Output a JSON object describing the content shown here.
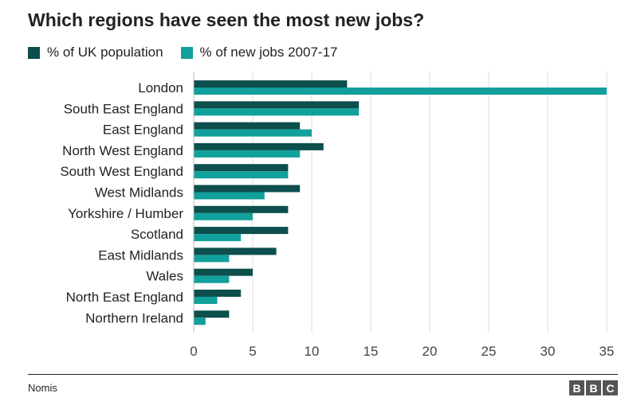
{
  "title": "Which regions have seen the most new jobs?",
  "source": "Nomis",
  "logo": [
    "B",
    "B",
    "C"
  ],
  "colors": {
    "population": "#0d4f4c",
    "new_jobs": "#11a09c",
    "grid": "#dddddd"
  },
  "chart_data": {
    "type": "bar",
    "orientation": "horizontal",
    "categories": [
      "London",
      "South East England",
      "East England",
      "North West England",
      "South West England",
      "West Midlands",
      "Yorkshire / Humber",
      "Scotland",
      "East Midlands",
      "Wales",
      "North East England",
      "Northern Ireland"
    ],
    "series": [
      {
        "name": "% of UK population",
        "values": [
          13,
          14,
          9,
          11,
          8,
          9,
          8,
          8,
          7,
          5,
          4,
          3
        ]
      },
      {
        "name": "% of new jobs 2007-17",
        "values": [
          35,
          14,
          10,
          9,
          8,
          6,
          5,
          4,
          3,
          3,
          2,
          1
        ]
      }
    ],
    "xlim": [
      0,
      35
    ],
    "xticks": [
      "0",
      "5",
      "10",
      "15",
      "20",
      "25",
      "30",
      "35"
    ],
    "xlabel": "",
    "ylabel": "",
    "grid": true,
    "legend_position": "top-left"
  }
}
